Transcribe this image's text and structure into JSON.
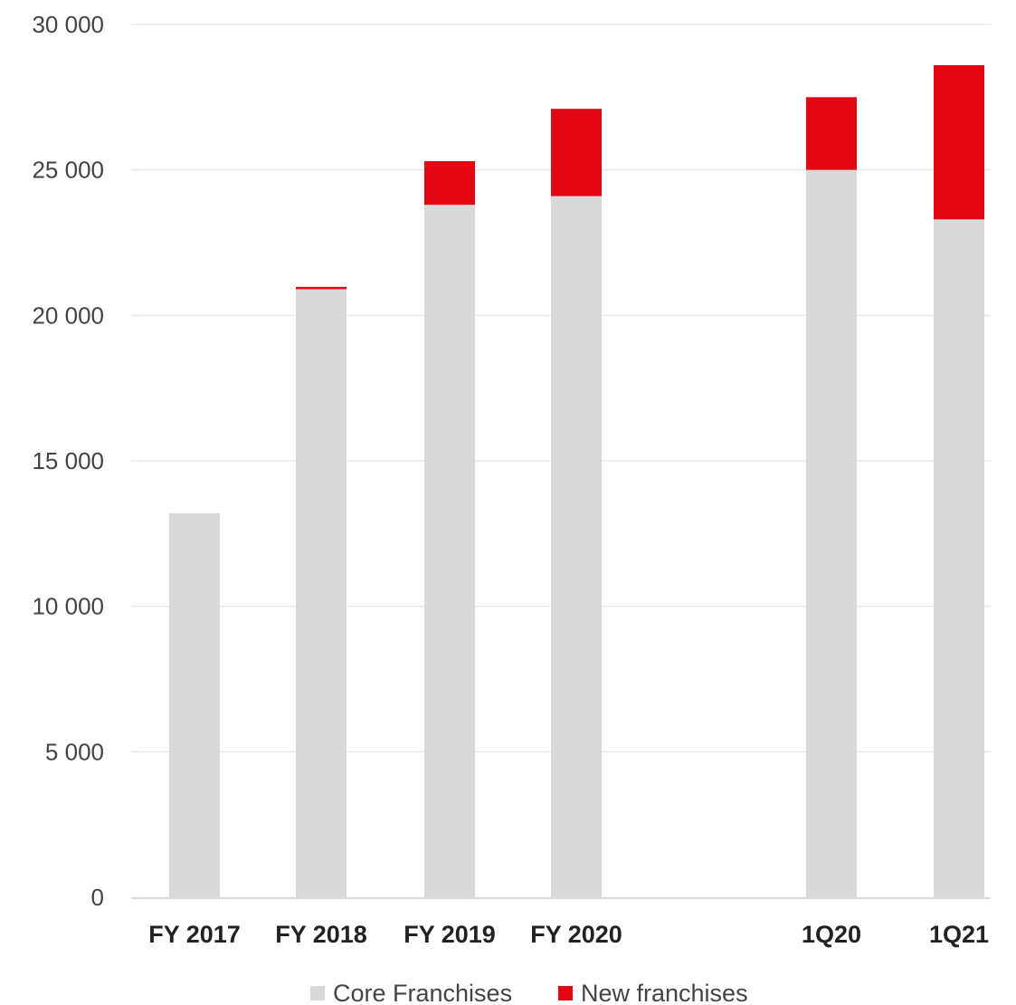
{
  "chart_data": {
    "type": "bar",
    "stacked": true,
    "categories": [
      "FY 2017",
      "FY 2018",
      "FY 2019",
      "FY 2020",
      "",
      "1Q20",
      "1Q21"
    ],
    "series": [
      {
        "name": "Core Franchises",
        "color": "#d9d9d9",
        "values": [
          13200,
          20900,
          23800,
          24100,
          null,
          25000,
          23300
        ]
      },
      {
        "name": "New franchises",
        "color": "#e30613",
        "values": [
          0,
          80,
          1500,
          3000,
          null,
          2500,
          5300
        ]
      }
    ],
    "ylim": [
      0,
      30000
    ],
    "yticks": [
      0,
      5000,
      10000,
      15000,
      20000,
      25000,
      30000
    ],
    "ytick_labels": [
      "0",
      "5 000",
      "10 000",
      "15 000",
      "20 000",
      "25 000",
      "30 000"
    ],
    "grid": true,
    "legend_position": "bottom",
    "gridline_color": "#e3e3e3",
    "axis_color": "#cfcfcf"
  }
}
